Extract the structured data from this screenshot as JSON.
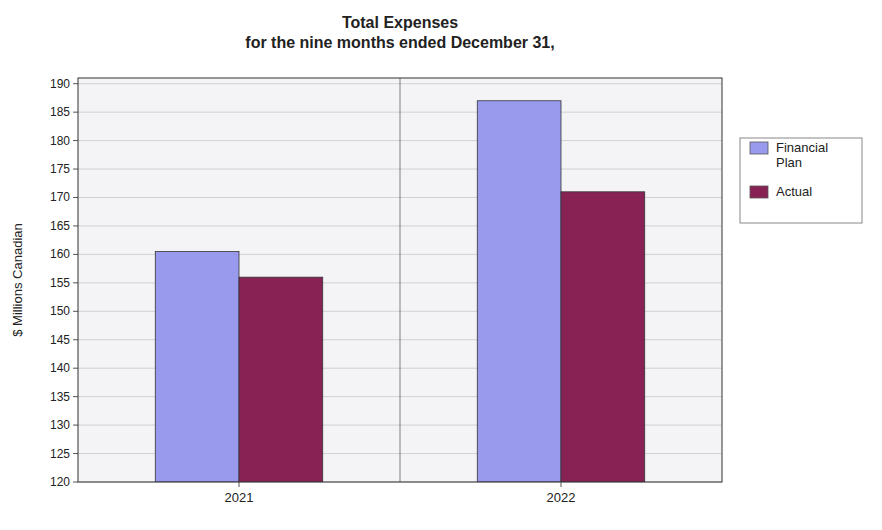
{
  "chart_data": {
    "type": "bar",
    "title": "Total Expenses\nfor the nine months ended December 31,",
    "categories": [
      "2021",
      "2022"
    ],
    "series": [
      {
        "name": "Financial\nPlan",
        "color": "#9999EE",
        "values": [
          160.5,
          187.0
        ]
      },
      {
        "name": "Actual",
        "color": "#882255",
        "values": [
          156.0,
          171.0
        ]
      }
    ],
    "y_label": "$ Millions Canadian",
    "ylim": [
      120,
      191
    ],
    "yticks": [
      120,
      125,
      130,
      135,
      140,
      145,
      150,
      155,
      160,
      165,
      170,
      175,
      180,
      185,
      190
    ],
    "grid": true,
    "legend": "right"
  }
}
